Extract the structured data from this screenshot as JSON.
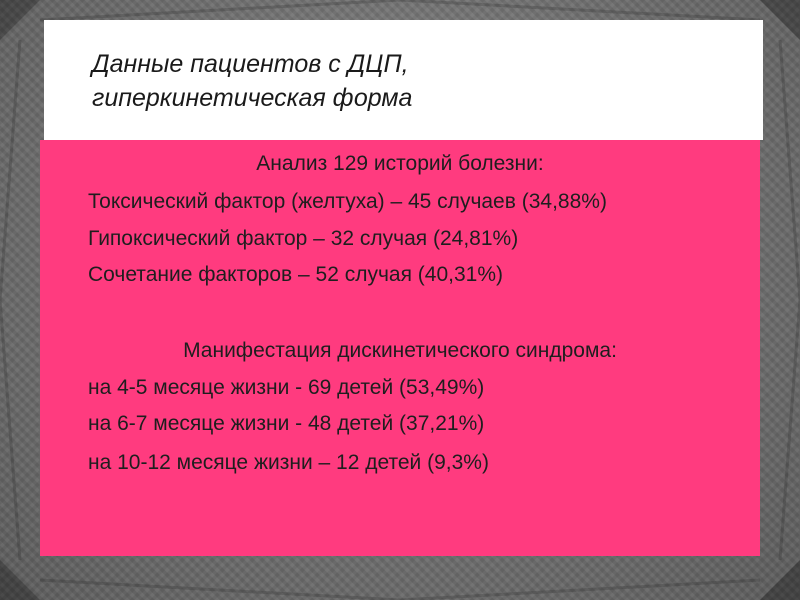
{
  "slide": {
    "title_line1": "Данные пациентов с ДЦП,",
    "title_line2": "гиперкинетическая форма",
    "section1": {
      "heading": "Анализ 129 историй болезни:",
      "items": [
        "Токсический фактор (желтуха) – 45 случаев (34,88%)",
        "Гипоксический фактор – 32 случая (24,81%)",
        "Сочетание факторов – 52 случая (40,31%)"
      ]
    },
    "section2": {
      "heading": "Манифестация дискинетического синдрома:",
      "items": [
        "на 4-5 месяце жизни - 69 детей (53,49%)",
        "на 6-7 месяце жизни -  48 детей (37,21%)",
        "на 10-12 месяце жизни – 12 детей (9,3%)"
      ]
    }
  },
  "colors": {
    "background": "#6e6e6e",
    "title_box": "#ffffff",
    "content_box": "#ff3b7f",
    "text": "#1e1e1e"
  }
}
